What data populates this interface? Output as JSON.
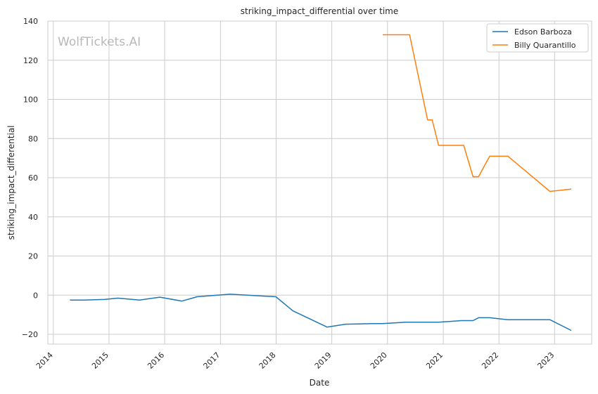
{
  "chart_data": {
    "type": "line",
    "title": "striking_impact_differential over time",
    "xlabel": "Date",
    "ylabel": "striking_impact_differential",
    "watermark": "WolfTickets.AI",
    "x_ticks": [
      "2014",
      "2015",
      "2016",
      "2017",
      "2018",
      "2019",
      "2020",
      "2021",
      "2022",
      "2023"
    ],
    "y_ticks": [
      "−20",
      "0",
      "20",
      "40",
      "60",
      "80",
      "100",
      "120",
      "140"
    ],
    "ylim": [
      -25,
      140
    ],
    "xlim": [
      "2013-11-26",
      "2023-09-01"
    ],
    "grid": true,
    "legend_position": "top-right",
    "series": [
      {
        "name": "Edson Barboza",
        "color": "#1f77b4",
        "points": [
          [
            "2014-04-20",
            -2.5
          ],
          [
            "2014-07-15",
            -2.5
          ],
          [
            "2014-12-01",
            -2.2
          ],
          [
            "2015-02-28",
            -1.5
          ],
          [
            "2015-07-20",
            -2.5
          ],
          [
            "2015-12-01",
            -1.0
          ],
          [
            "2016-04-23",
            -3.0
          ],
          [
            "2016-08-01",
            -0.8
          ],
          [
            "2017-03-05",
            0.5
          ],
          [
            "2017-12-30",
            -0.8
          ],
          [
            "2018-04-21",
            -8.0
          ],
          [
            "2018-12-01",
            -16.3
          ],
          [
            "2019-04-01",
            -14.8
          ],
          [
            "2019-10-01",
            -14.5
          ],
          [
            "2019-12-01",
            -14.5
          ],
          [
            "2020-05-01",
            -13.8
          ],
          [
            "2020-12-01",
            -13.8
          ],
          [
            "2021-05-01",
            -13.0
          ],
          [
            "2021-07-15",
            -13.0
          ],
          [
            "2021-08-20",
            -11.5
          ],
          [
            "2021-11-01",
            -11.5
          ],
          [
            "2022-03-01",
            -12.5
          ],
          [
            "2022-12-01",
            -12.5
          ],
          [
            "2023-04-20",
            -18.0
          ]
        ]
      },
      {
        "name": "Billy Quarantillo",
        "color": "#ff7f0e",
        "points": [
          [
            "2019-12-01",
            133
          ],
          [
            "2020-05-25",
            133
          ],
          [
            "2020-09-20",
            89.5
          ],
          [
            "2020-10-20",
            89.5
          ],
          [
            "2020-12-01",
            76.5
          ],
          [
            "2021-05-15",
            76.5
          ],
          [
            "2021-07-15",
            60.5
          ],
          [
            "2021-08-20",
            60.5
          ],
          [
            "2021-11-01",
            71.0
          ],
          [
            "2022-03-01",
            71.0
          ],
          [
            "2022-12-01",
            53.0
          ],
          [
            "2023-04-20",
            54.2
          ]
        ]
      }
    ]
  }
}
